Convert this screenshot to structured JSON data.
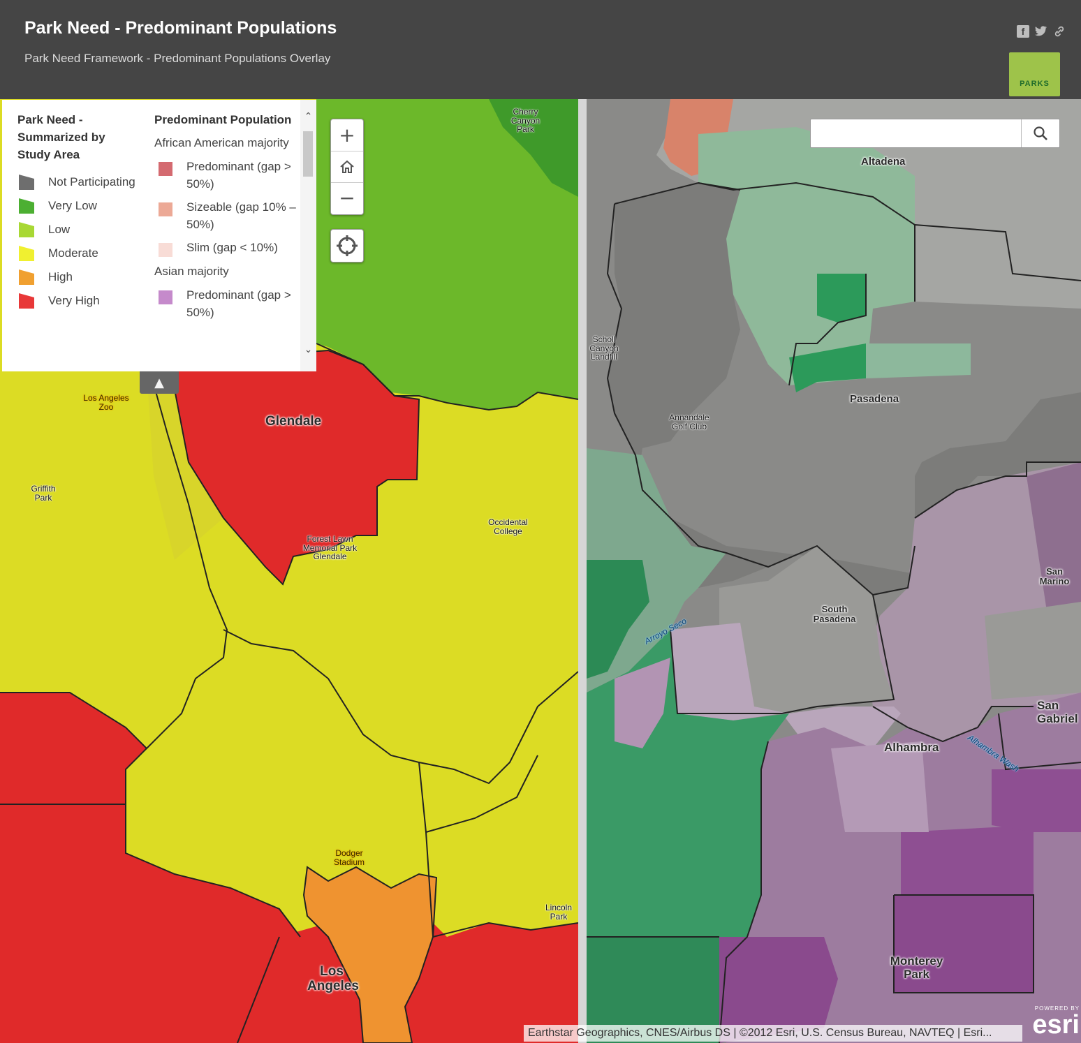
{
  "header": {
    "title": "Park Need - Predominant Populations",
    "subtitle": "Park Need Framework - Predominant Populations Overlay",
    "logo_text": "PARKS",
    "social": [
      {
        "icon": "facebook-icon",
        "glyph": "f"
      },
      {
        "icon": "twitter-icon",
        "glyph": "t"
      },
      {
        "icon": "link-icon",
        "glyph": "🔗"
      }
    ]
  },
  "legend": {
    "col1_title": "Park Need - Summarized by Study Area",
    "col1_items": [
      {
        "label": "Not Participating",
        "color": "#6e6e6e"
      },
      {
        "label": "Very Low",
        "color": "#4caf32"
      },
      {
        "label": "Low",
        "color": "#a8d834"
      },
      {
        "label": "Moderate",
        "color": "#f0f030"
      },
      {
        "label": "High",
        "color": "#f0a030"
      },
      {
        "label": "Very High",
        "color": "#e83838"
      }
    ],
    "col2_title": "Predominant Population",
    "groups": [
      {
        "name": "African American majority",
        "items": [
          {
            "label": "Predominant (gap > 50%)",
            "color": "#d46a70"
          },
          {
            "label": "Sizeable (gap 10% – 50%)",
            "color": "#eca996"
          },
          {
            "label": "Slim (gap < 10%)",
            "color": "#f8dcd6"
          }
        ]
      },
      {
        "name": "Asian majority",
        "items": [
          {
            "label": "Predominant (gap > 50%)",
            "color": "#c58acb"
          }
        ]
      }
    ]
  },
  "controls": {
    "zoom_in": "+",
    "zoom_out": "−",
    "home_icon": "home-icon",
    "locate_icon": "locate-icon",
    "search_placeholder": "",
    "search_icon": "search-icon"
  },
  "map_left": {
    "labels": {
      "glendale": "Glendale",
      "los_angeles": "Los Angeles",
      "la_zoo": "Los Angeles Zoo",
      "griffith_park": "Griffith Park",
      "forest_lawn": "Forest Lawn Memorial Park Glendale",
      "occidental": "Occidental College",
      "dodger": "Dodger Stadium",
      "lincoln_park": "Lincoln Park",
      "cherry_canyon": "Cherry Canyon Park"
    }
  },
  "map_right": {
    "labels": {
      "altadena": "Altadena",
      "pasadena": "Pasadena",
      "south_pasadena": "South Pasadena",
      "alhambra": "Alhambra",
      "monterey_park": "Monterey Park",
      "san_marino": "San Marino",
      "san_gabriel": "San Gabriel",
      "scholl_canyon": "Scholl Canyon Landfill",
      "annandale": "Annandale Golf Club",
      "arroyo_seco": "Arroyo Seco",
      "alhambra_wash": "Alhambra Wash"
    }
  },
  "attribution": "Earthstar Geographics, CNES/Airbus DS | ©2012 Esri, U.S. Census Bureau, NAVTEQ | Esri...",
  "esri": {
    "powered_by": "POWERED BY",
    "brand": "esri"
  }
}
